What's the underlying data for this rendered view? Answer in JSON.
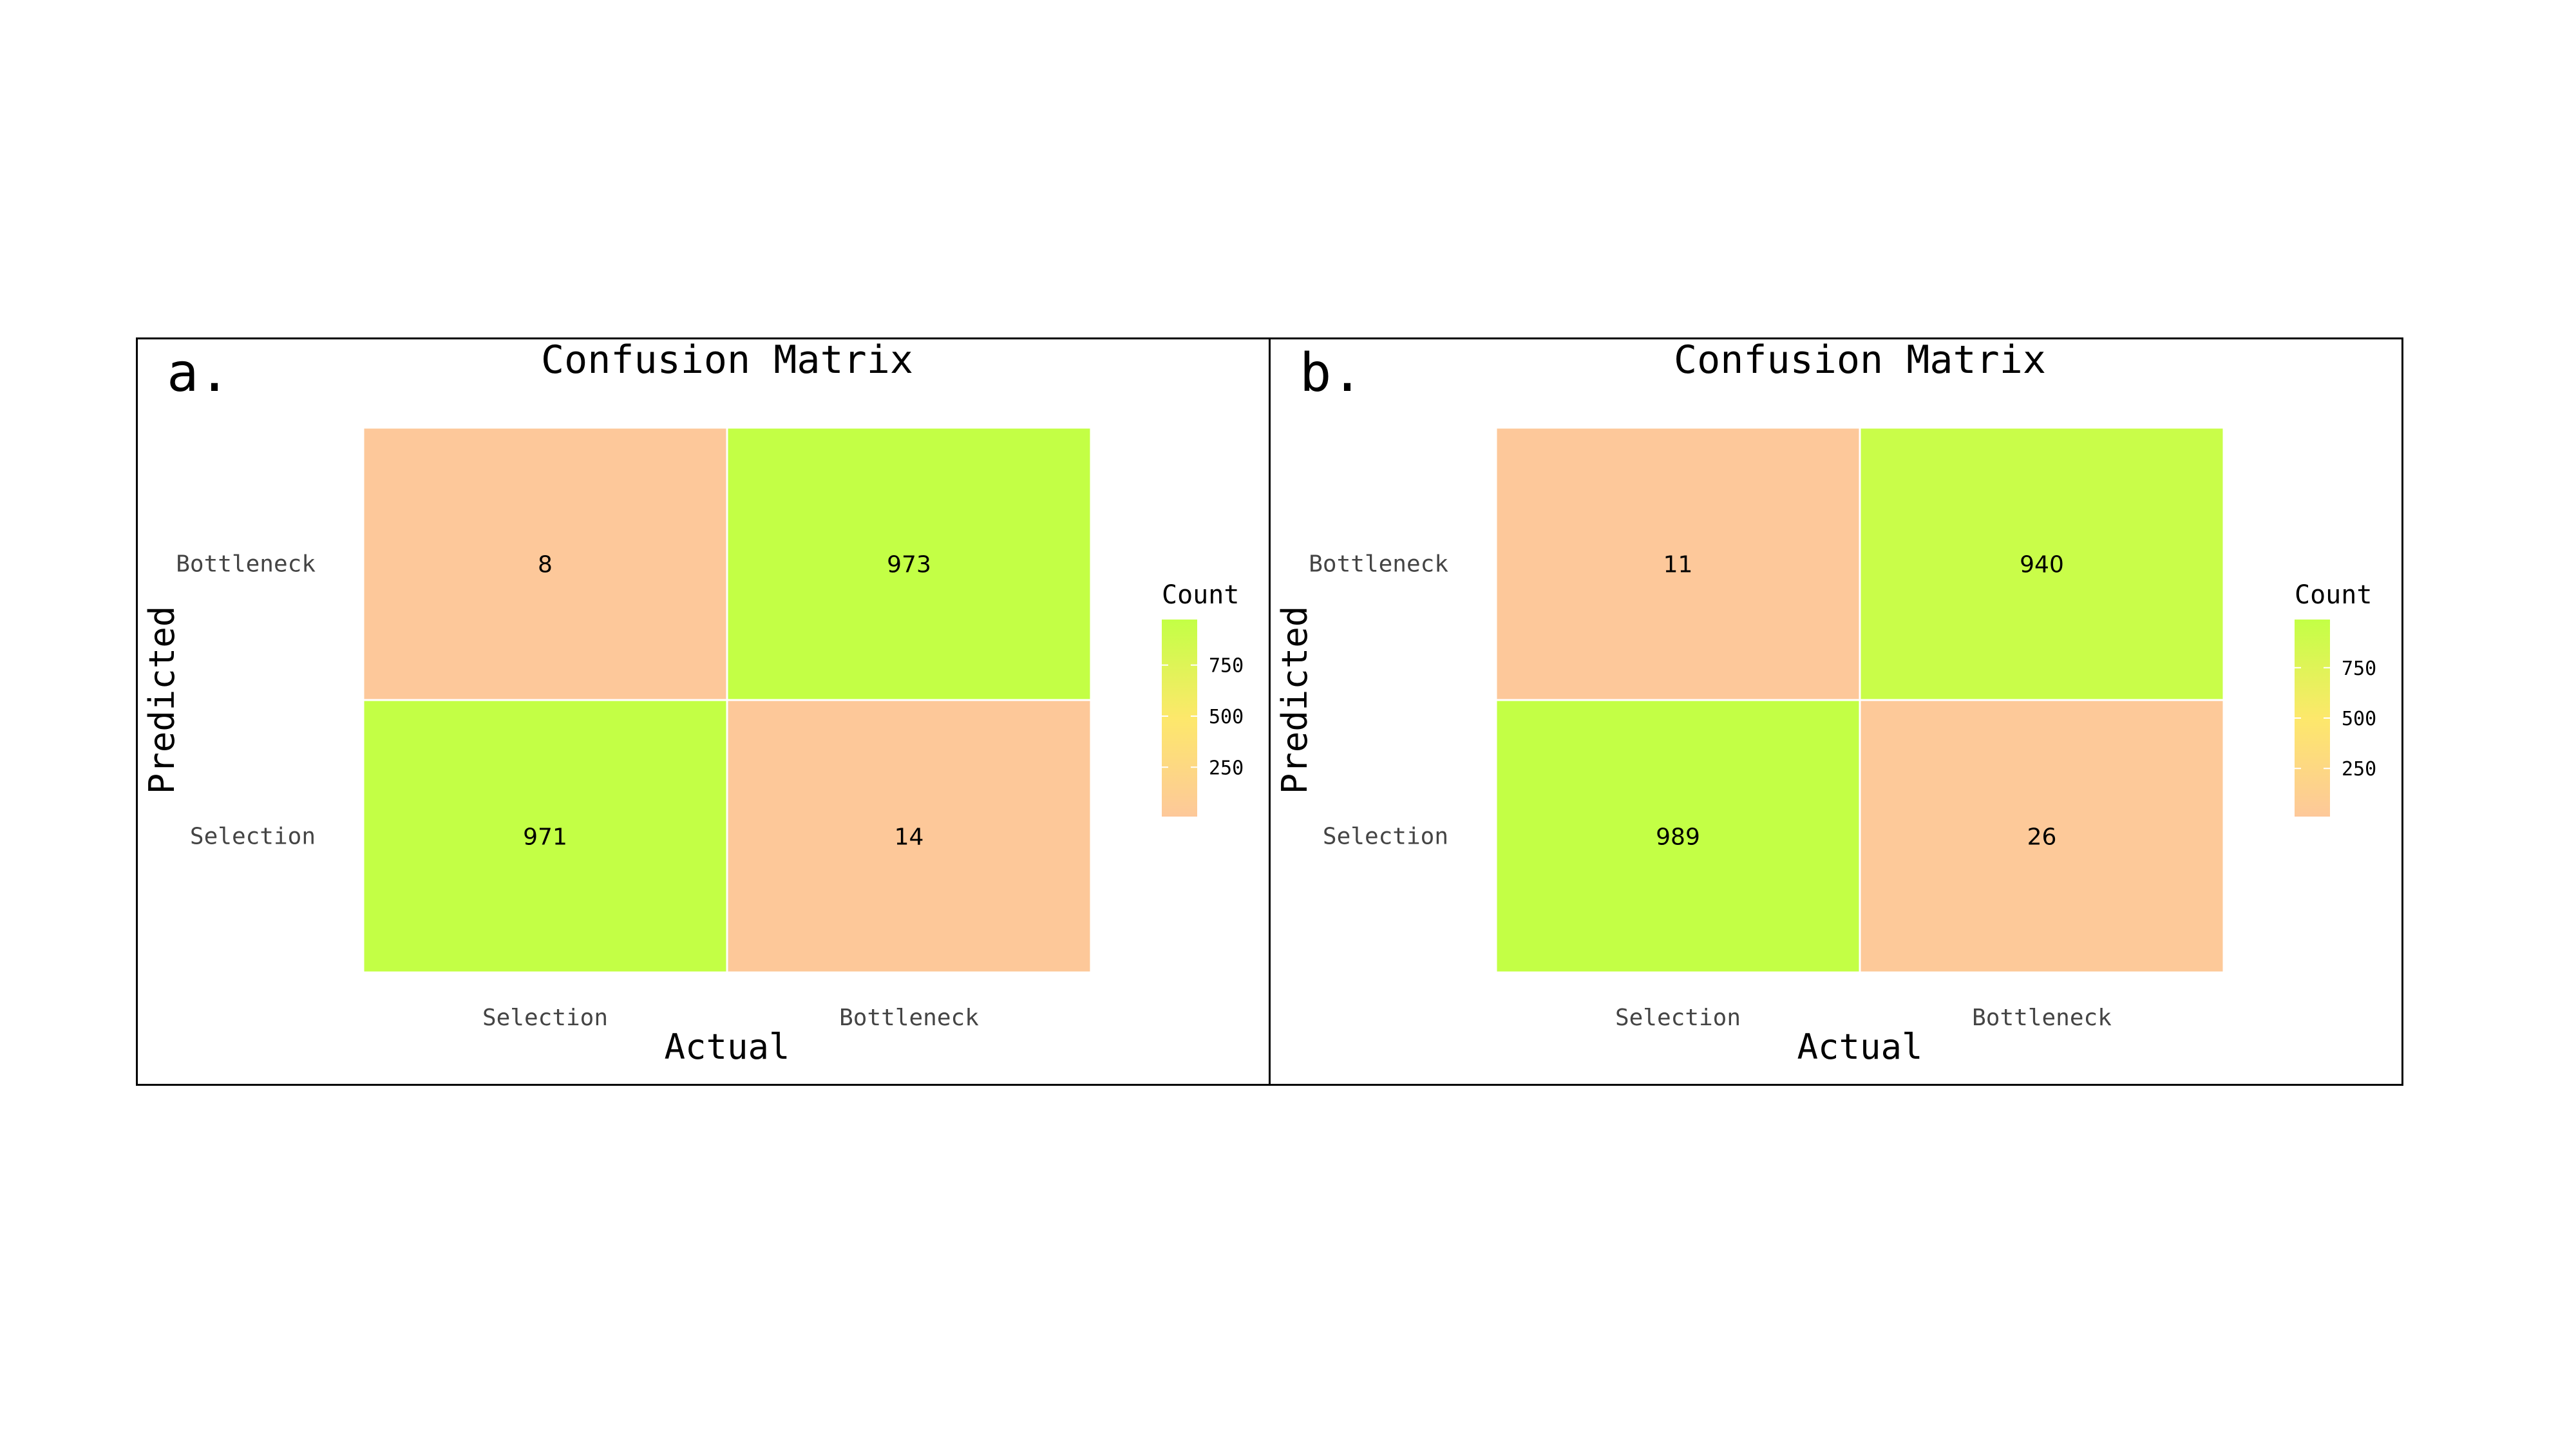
{
  "colors": {
    "low": "#fdc89a",
    "mid": "#fde86b",
    "high": "#c3ff45"
  },
  "chart_data": [
    {
      "type": "heatmap",
      "panel_label": "a.",
      "title": "Confusion Matrix",
      "xlabel": "Actual",
      "ylabel": "Predicted",
      "x_categories": [
        "Selection",
        "Bottleneck"
      ],
      "y_categories": [
        "Selection",
        "Bottleneck"
      ],
      "cells": [
        {
          "actual": "Selection",
          "predicted": "Bottleneck",
          "count": 8
        },
        {
          "actual": "Bottleneck",
          "predicted": "Bottleneck",
          "count": 973
        },
        {
          "actual": "Selection",
          "predicted": "Selection",
          "count": 971
        },
        {
          "actual": "Bottleneck",
          "predicted": "Selection",
          "count": 14
        }
      ],
      "legend": {
        "title": "Count",
        "ticks": [
          250,
          500,
          750
        ],
        "range": [
          8,
          973
        ],
        "placement": "right"
      }
    },
    {
      "type": "heatmap",
      "panel_label": "b.",
      "title": "Confusion Matrix",
      "xlabel": "Actual",
      "ylabel": "Predicted",
      "x_categories": [
        "Selection",
        "Bottleneck"
      ],
      "y_categories": [
        "Selection",
        "Bottleneck"
      ],
      "cells": [
        {
          "actual": "Selection",
          "predicted": "Bottleneck",
          "count": 11
        },
        {
          "actual": "Bottleneck",
          "predicted": "Bottleneck",
          "count": 940
        },
        {
          "actual": "Selection",
          "predicted": "Selection",
          "count": 989
        },
        {
          "actual": "Bottleneck",
          "predicted": "Selection",
          "count": 26
        }
      ],
      "legend": {
        "title": "Count",
        "ticks": [
          250,
          500,
          750
        ],
        "range": [
          11,
          989
        ],
        "placement": "right"
      }
    }
  ]
}
